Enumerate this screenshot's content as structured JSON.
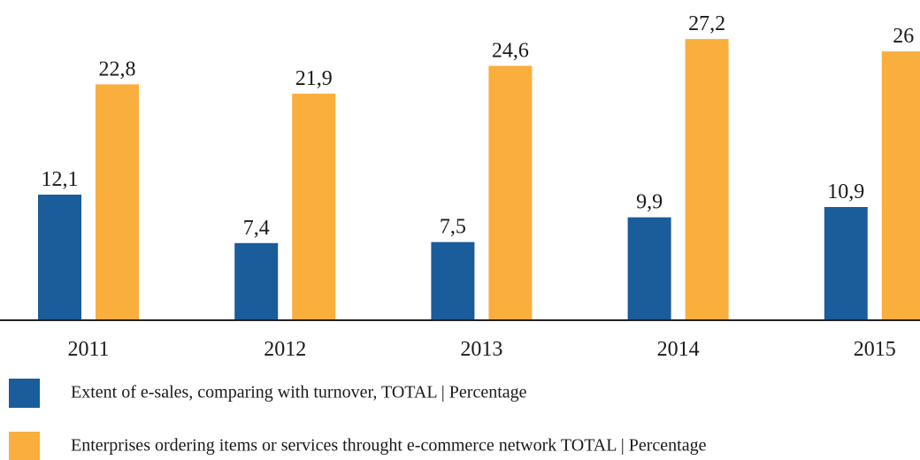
{
  "chart_data": {
    "type": "bar",
    "categories": [
      "2011",
      "2012",
      "2013",
      "2014",
      "2015"
    ],
    "series": [
      {
        "name": "Extent of e-sales, comparing with turnover, TOTAL | Percentage",
        "color": "#1b5c9b",
        "values": [
          12.1,
          7.4,
          7.5,
          9.9,
          10.9
        ],
        "value_labels": [
          "12,1",
          "7,4",
          "7,5",
          "9,9",
          "10,9"
        ]
      },
      {
        "name": "Enterprises ordering items or services throught e-commerce network TOTAL | Percentage",
        "color": "#f9ae3d",
        "values": [
          22.8,
          21.9,
          24.6,
          27.2,
          26
        ],
        "value_labels": [
          "22,8",
          "21,9",
          "24,6",
          "27,2",
          "26"
        ]
      }
    ]
  }
}
